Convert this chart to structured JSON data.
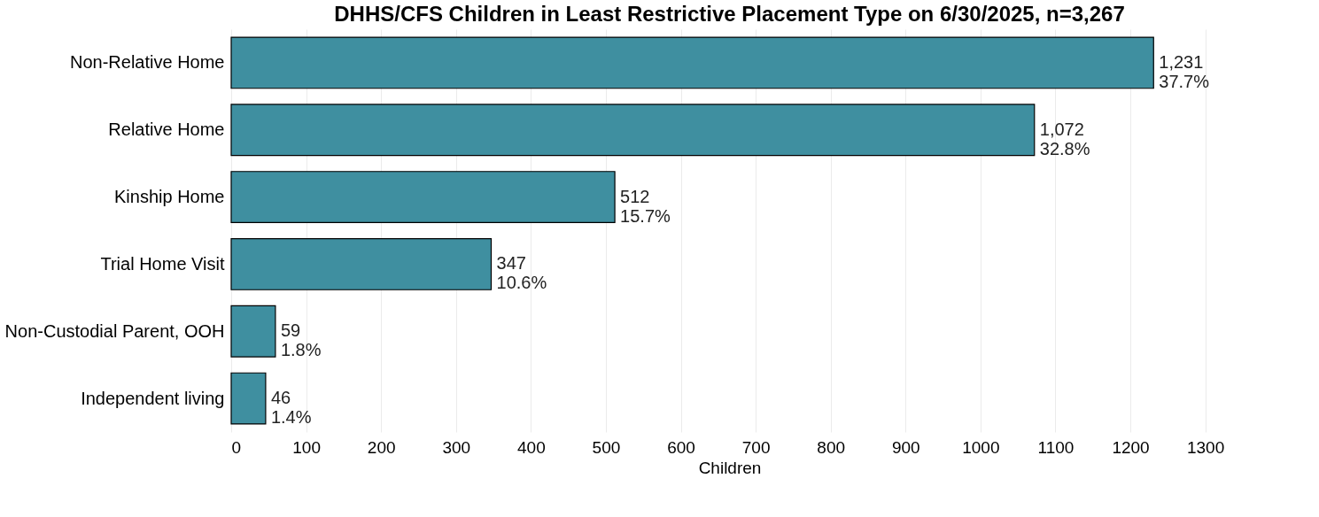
{
  "chart_data": {
    "type": "bar",
    "orientation": "horizontal",
    "title": "DHHS/CFS Children in Least Restrictive Placement Type on 6/30/2025, n=3,267",
    "xlabel": "Children",
    "categories": [
      "Non-Relative Home",
      "Relative Home",
      "Kinship Home",
      "Trial Home Visit",
      "Non-Custodial Parent, OOH",
      "Independent living"
    ],
    "values": [
      1231,
      1072,
      512,
      347,
      59,
      46
    ],
    "value_labels": [
      "1,231\n37.7%",
      "1,072\n32.8%",
      "512\n15.7%",
      "347\n10.6%",
      "59\n1.8%",
      "46\n1.4%"
    ],
    "color": "#3f8fa0",
    "xlim": [
      0,
      1330
    ],
    "xticks": [
      0,
      100,
      200,
      300,
      400,
      500,
      600,
      700,
      800,
      900,
      1000,
      1100,
      1200,
      1300
    ],
    "grid": "x"
  }
}
